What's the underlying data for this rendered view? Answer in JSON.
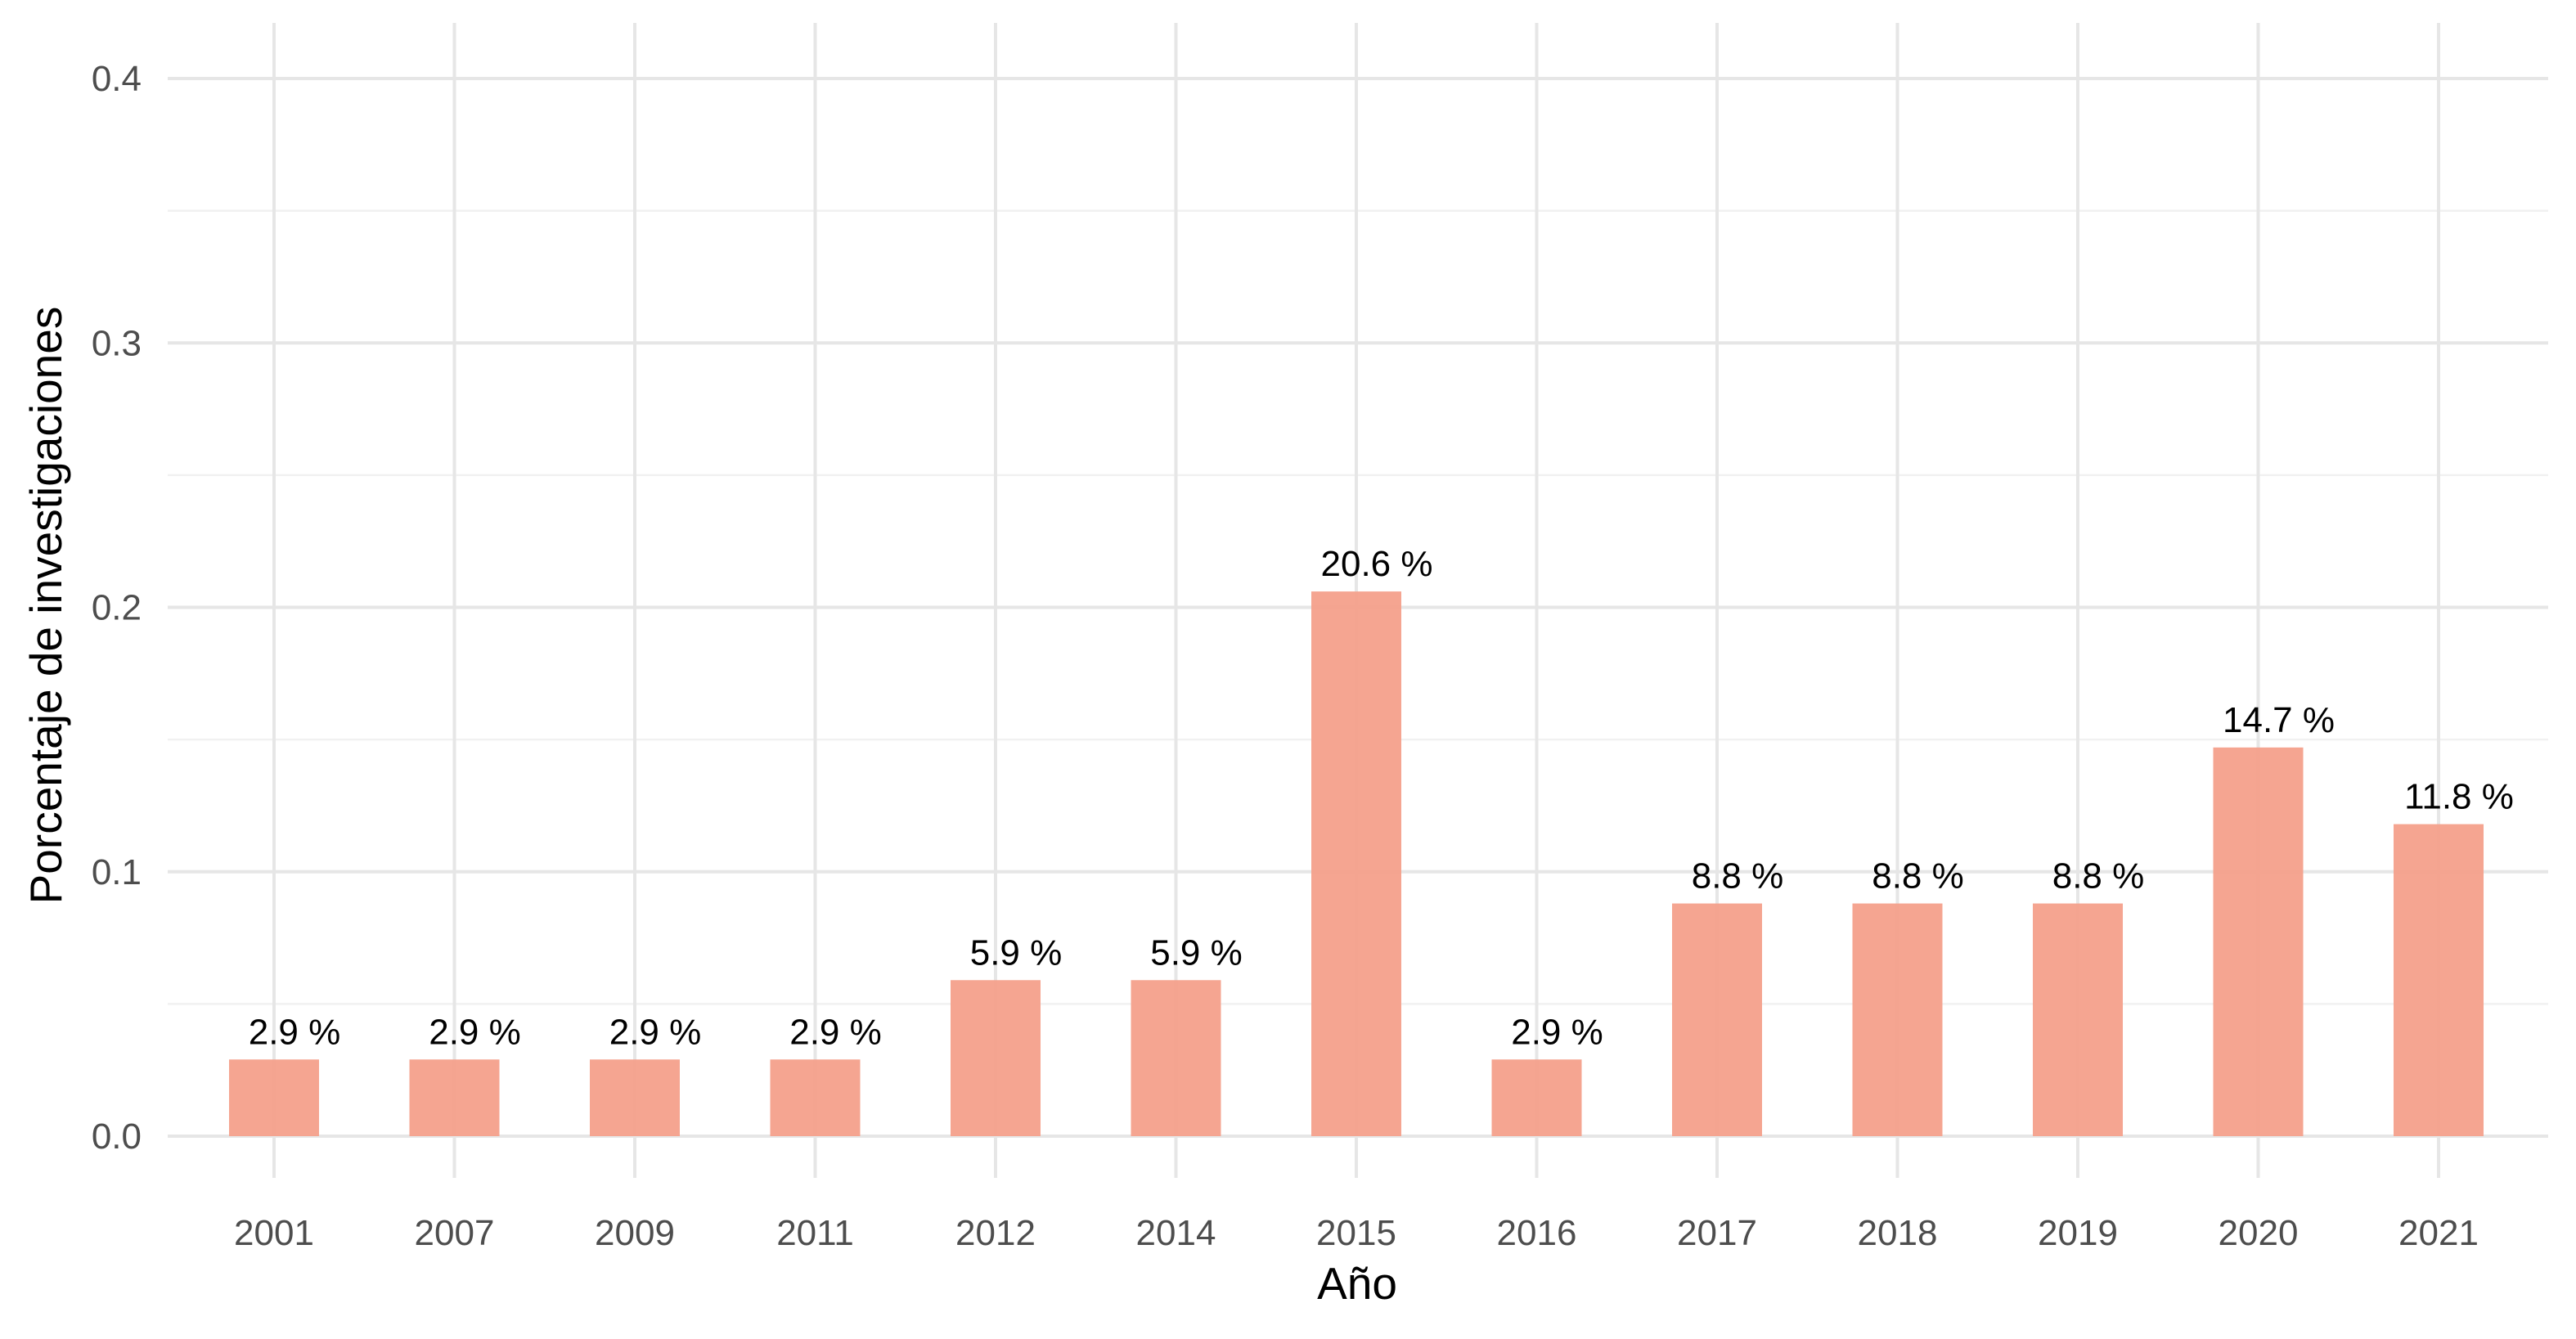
{
  "chart_data": {
    "type": "bar",
    "xlabel": "Año",
    "ylabel": "Porcentaje de investigaciones",
    "categories": [
      "2001",
      "2007",
      "2009",
      "2011",
      "2012",
      "2014",
      "2015",
      "2016",
      "2017",
      "2018",
      "2019",
      "2020",
      "2021"
    ],
    "values": [
      0.029,
      0.029,
      0.029,
      0.029,
      0.059,
      0.059,
      0.206,
      0.029,
      0.088,
      0.088,
      0.088,
      0.147,
      0.118
    ],
    "data_labels": [
      "2.9 %",
      "2.9 %",
      "2.9 %",
      "2.9 %",
      "5.9 %",
      "5.9 %",
      "20.6 %",
      "2.9 %",
      "8.8 %",
      "8.8 %",
      "8.8 %",
      "14.7 %",
      "11.8 %"
    ],
    "ylim": [
      0,
      0.4
    ],
    "yticks": [
      0.0,
      0.1,
      0.2,
      0.3,
      0.4
    ],
    "ytick_labels": [
      "0.0",
      "0.1",
      "0.2",
      "0.3",
      "0.4"
    ],
    "grid": true,
    "legend": "none",
    "bar_color": "#f4a08b"
  }
}
